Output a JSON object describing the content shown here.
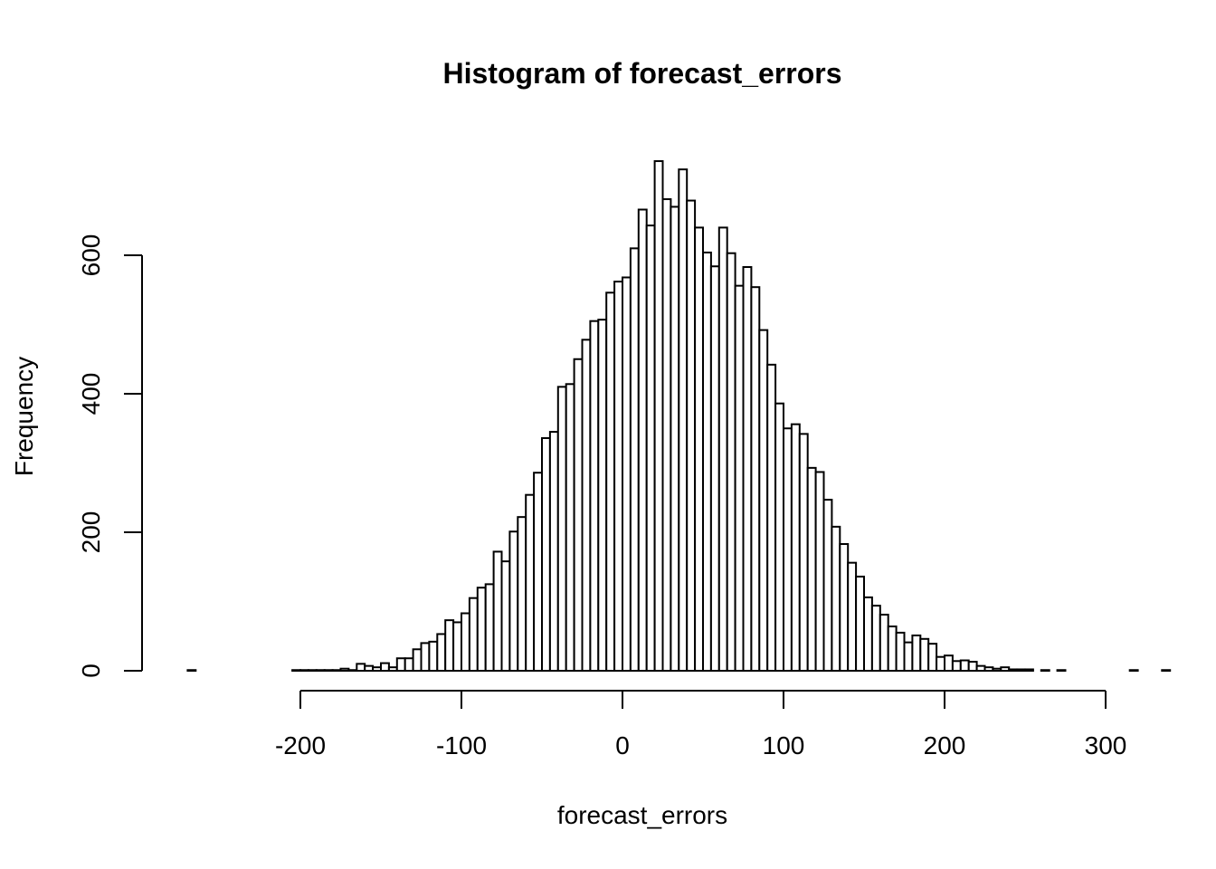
{
  "chart_data": {
    "type": "bar",
    "title": "Histogram of forecast_errors",
    "xlabel": "forecast_errors",
    "ylabel": "Frequency",
    "bin_width": 5,
    "bin_start": -270,
    "xlim": [
      -270,
      300
    ],
    "ylim": [
      0,
      740
    ],
    "x_ticks": [
      -200,
      -100,
      0,
      100,
      200,
      300
    ],
    "y_ticks": [
      0,
      200,
      400,
      600
    ],
    "grid": false,
    "values": [
      1,
      0,
      0,
      0,
      0,
      0,
      0,
      0,
      0,
      0,
      0,
      0,
      0,
      1,
      1,
      1,
      1,
      1,
      1,
      3,
      1,
      10,
      7,
      5,
      11,
      5,
      18,
      18,
      31,
      40,
      42,
      53,
      73,
      70,
      83,
      105,
      120,
      125,
      172,
      158,
      201,
      222,
      254,
      286,
      336,
      345,
      410,
      414,
      450,
      478,
      505,
      507,
      546,
      562,
      568,
      610,
      666,
      643,
      736,
      681,
      670,
      724,
      679,
      640,
      604,
      584,
      640,
      603,
      556,
      583,
      554,
      492,
      442,
      386,
      350,
      356,
      342,
      293,
      287,
      247,
      208,
      183,
      156,
      136,
      106,
      94,
      81,
      64,
      55,
      41,
      51,
      46,
      39,
      20,
      22,
      14,
      15,
      13,
      7,
      5,
      3,
      5,
      2,
      2,
      2,
      0,
      1,
      0,
      1,
      0,
      0,
      0,
      0,
      0,
      0,
      0,
      0,
      1,
      0,
      0,
      0,
      1
    ]
  }
}
